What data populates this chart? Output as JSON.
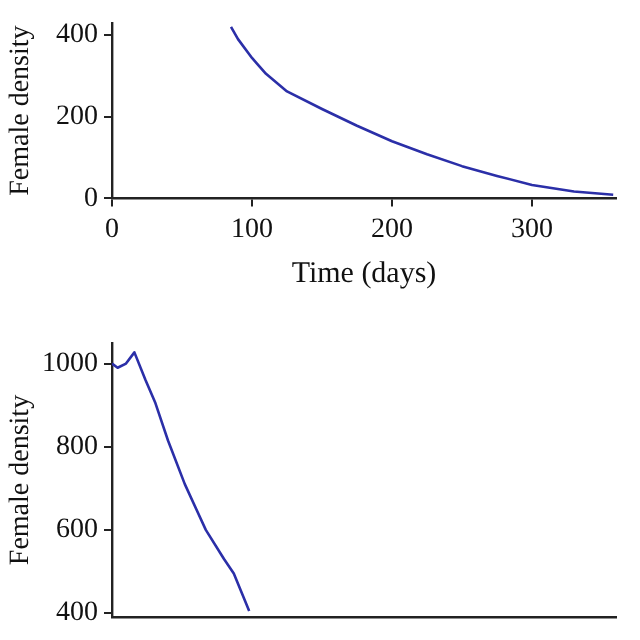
{
  "chart_data": [
    {
      "type": "line",
      "xlabel": "Time (days)",
      "ylabel": "Female density",
      "color": "#2b2fa8",
      "x": [
        85,
        90,
        100,
        110,
        125,
        150,
        175,
        200,
        225,
        250,
        275,
        300,
        330,
        358
      ],
      "values": [
        420,
        390,
        344,
        305,
        262,
        219,
        178,
        140,
        108,
        79,
        55,
        33,
        17,
        9
      ],
      "xlim": [
        0,
        360
      ],
      "xticks": [
        0,
        100,
        200,
        300
      ],
      "ylim": [
        0,
        430
      ],
      "yticks": [
        0,
        200,
        400
      ]
    },
    {
      "type": "line",
      "ylabel": "Female density",
      "color": "#2b2fa8",
      "x": [
        0,
        4,
        10,
        16,
        24,
        31,
        40,
        52,
        67,
        80,
        87,
        98
      ],
      "values": [
        1000,
        990,
        1000,
        1027,
        960,
        905,
        815,
        710,
        600,
        530,
        495,
        405
      ],
      "xlim": [
        0,
        360
      ],
      "ylim": [
        390,
        1050
      ],
      "yticks": [
        400,
        600,
        800,
        1000
      ],
      "tick_labels": "y"
    }
  ]
}
